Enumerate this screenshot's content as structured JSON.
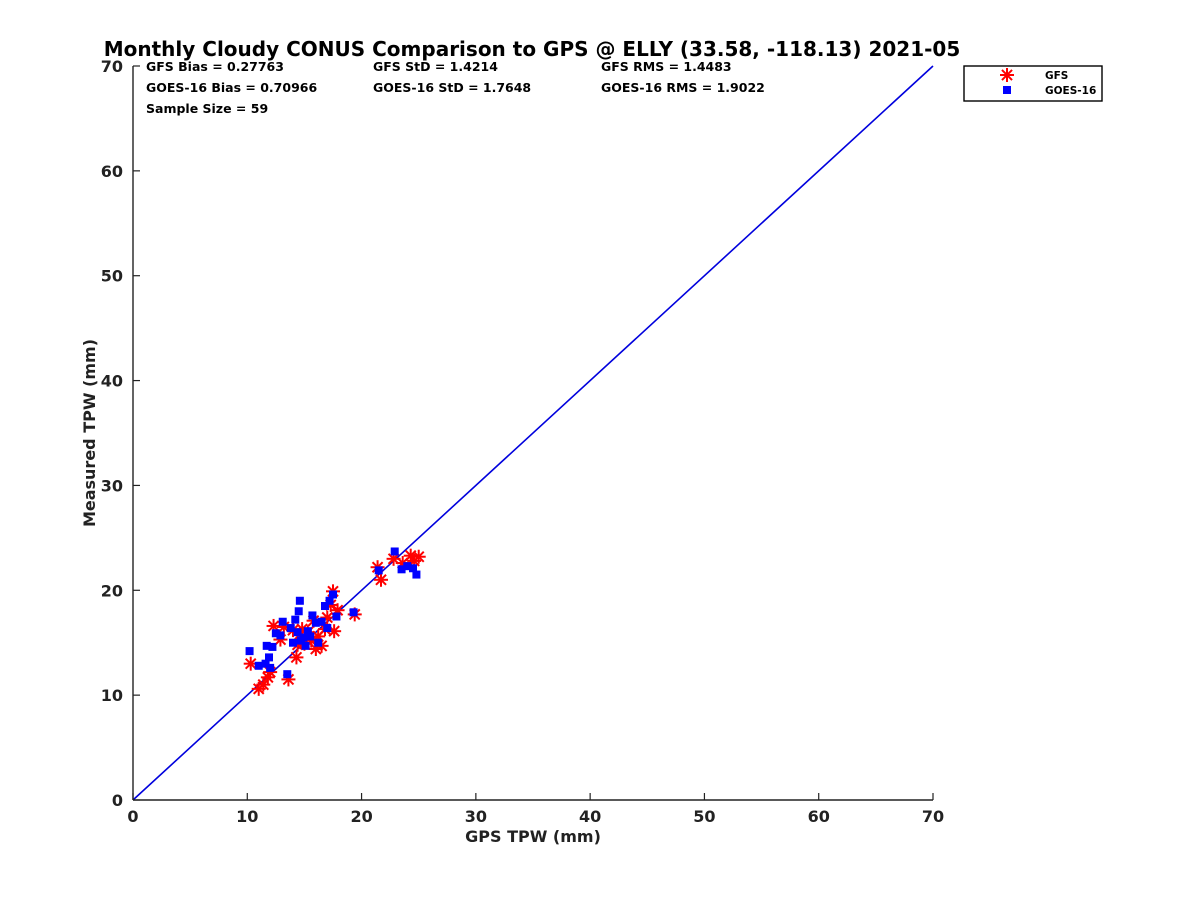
{
  "chart_data": {
    "type": "scatter",
    "title": "Monthly Cloudy CONUS Comparison to GPS @ ELLY (33.58, -118.13) 2021-05",
    "xlabel": "GPS TPW (mm)",
    "ylabel": "Measured TPW (mm)",
    "xlim": [
      0,
      70
    ],
    "ylim": [
      0,
      70
    ],
    "xticks": [
      "0",
      "10",
      "20",
      "30",
      "40",
      "50",
      "60",
      "70"
    ],
    "yticks": [
      "0",
      "10",
      "20",
      "30",
      "40",
      "50",
      "60",
      "70"
    ],
    "grid": false,
    "legend_position": "top-right",
    "stats": {
      "gfs_bias": "GFS Bias = 0.27763",
      "gfs_std": "GFS StD = 1.4214",
      "gfs_rms": "GFS RMS = 1.4483",
      "goes_bias": "GOES-16 Bias = 0.70966",
      "goes_std": "GOES-16 StD = 1.7648",
      "goes_rms": "GOES-16 RMS = 1.9022",
      "sample_size": "Sample Size = 59"
    },
    "reference_line": {
      "from": [
        0,
        0
      ],
      "to": [
        70,
        70
      ],
      "color": "#0000dd"
    },
    "series": [
      {
        "name": "GFS",
        "marker": "asterisk",
        "color": "#ff0000",
        "points": [
          [
            10.3,
            13.0
          ],
          [
            11.0,
            10.6
          ],
          [
            11.4,
            11.0
          ],
          [
            11.8,
            11.7
          ],
          [
            12.0,
            12.2
          ],
          [
            12.3,
            16.6
          ],
          [
            12.9,
            15.3
          ],
          [
            13.2,
            16.5
          ],
          [
            13.6,
            11.5
          ],
          [
            14.0,
            16.2
          ],
          [
            14.3,
            13.6
          ],
          [
            14.4,
            14.8
          ],
          [
            14.6,
            15.8
          ],
          [
            14.8,
            16.3
          ],
          [
            15.0,
            14.9
          ],
          [
            15.3,
            16.0
          ],
          [
            15.6,
            15.2
          ],
          [
            15.8,
            17.1
          ],
          [
            16.0,
            14.4
          ],
          [
            16.2,
            15.6
          ],
          [
            16.5,
            14.7
          ],
          [
            16.8,
            16.3
          ],
          [
            17.0,
            17.4
          ],
          [
            17.3,
            18.6
          ],
          [
            17.5,
            19.9
          ],
          [
            17.6,
            16.1
          ],
          [
            17.9,
            18.1
          ],
          [
            19.4,
            17.7
          ],
          [
            21.4,
            22.2
          ],
          [
            21.7,
            21.0
          ],
          [
            22.8,
            23.0
          ],
          [
            23.6,
            22.6
          ],
          [
            24.3,
            23.3
          ],
          [
            24.6,
            22.8
          ],
          [
            25.0,
            23.2
          ]
        ]
      },
      {
        "name": "GOES-16",
        "marker": "square",
        "color": "#0000ff",
        "points": [
          [
            10.2,
            14.2
          ],
          [
            11.0,
            12.8
          ],
          [
            11.6,
            13.0
          ],
          [
            11.7,
            14.7
          ],
          [
            11.9,
            13.6
          ],
          [
            12.0,
            12.6
          ],
          [
            12.2,
            14.6
          ],
          [
            12.5,
            15.9
          ],
          [
            12.9,
            15.7
          ],
          [
            13.1,
            17.0
          ],
          [
            13.5,
            12.0
          ],
          [
            13.8,
            16.4
          ],
          [
            14.0,
            15.0
          ],
          [
            14.2,
            17.2
          ],
          [
            14.4,
            16.0
          ],
          [
            14.5,
            18.0
          ],
          [
            14.6,
            19.0
          ],
          [
            14.7,
            15.2
          ],
          [
            14.9,
            15.5
          ],
          [
            15.1,
            14.7
          ],
          [
            15.3,
            16.1
          ],
          [
            15.5,
            15.6
          ],
          [
            15.7,
            17.6
          ],
          [
            16.0,
            16.9
          ],
          [
            16.2,
            15.0
          ],
          [
            16.5,
            17.0
          ],
          [
            16.8,
            18.5
          ],
          [
            17.0,
            16.4
          ],
          [
            17.2,
            19.0
          ],
          [
            17.5,
            19.6
          ],
          [
            17.8,
            17.5
          ],
          [
            19.3,
            17.9
          ],
          [
            21.5,
            21.9
          ],
          [
            22.9,
            23.7
          ],
          [
            23.5,
            22.0
          ],
          [
            24.0,
            22.3
          ],
          [
            24.5,
            22.1
          ],
          [
            24.8,
            21.5
          ]
        ]
      }
    ]
  }
}
